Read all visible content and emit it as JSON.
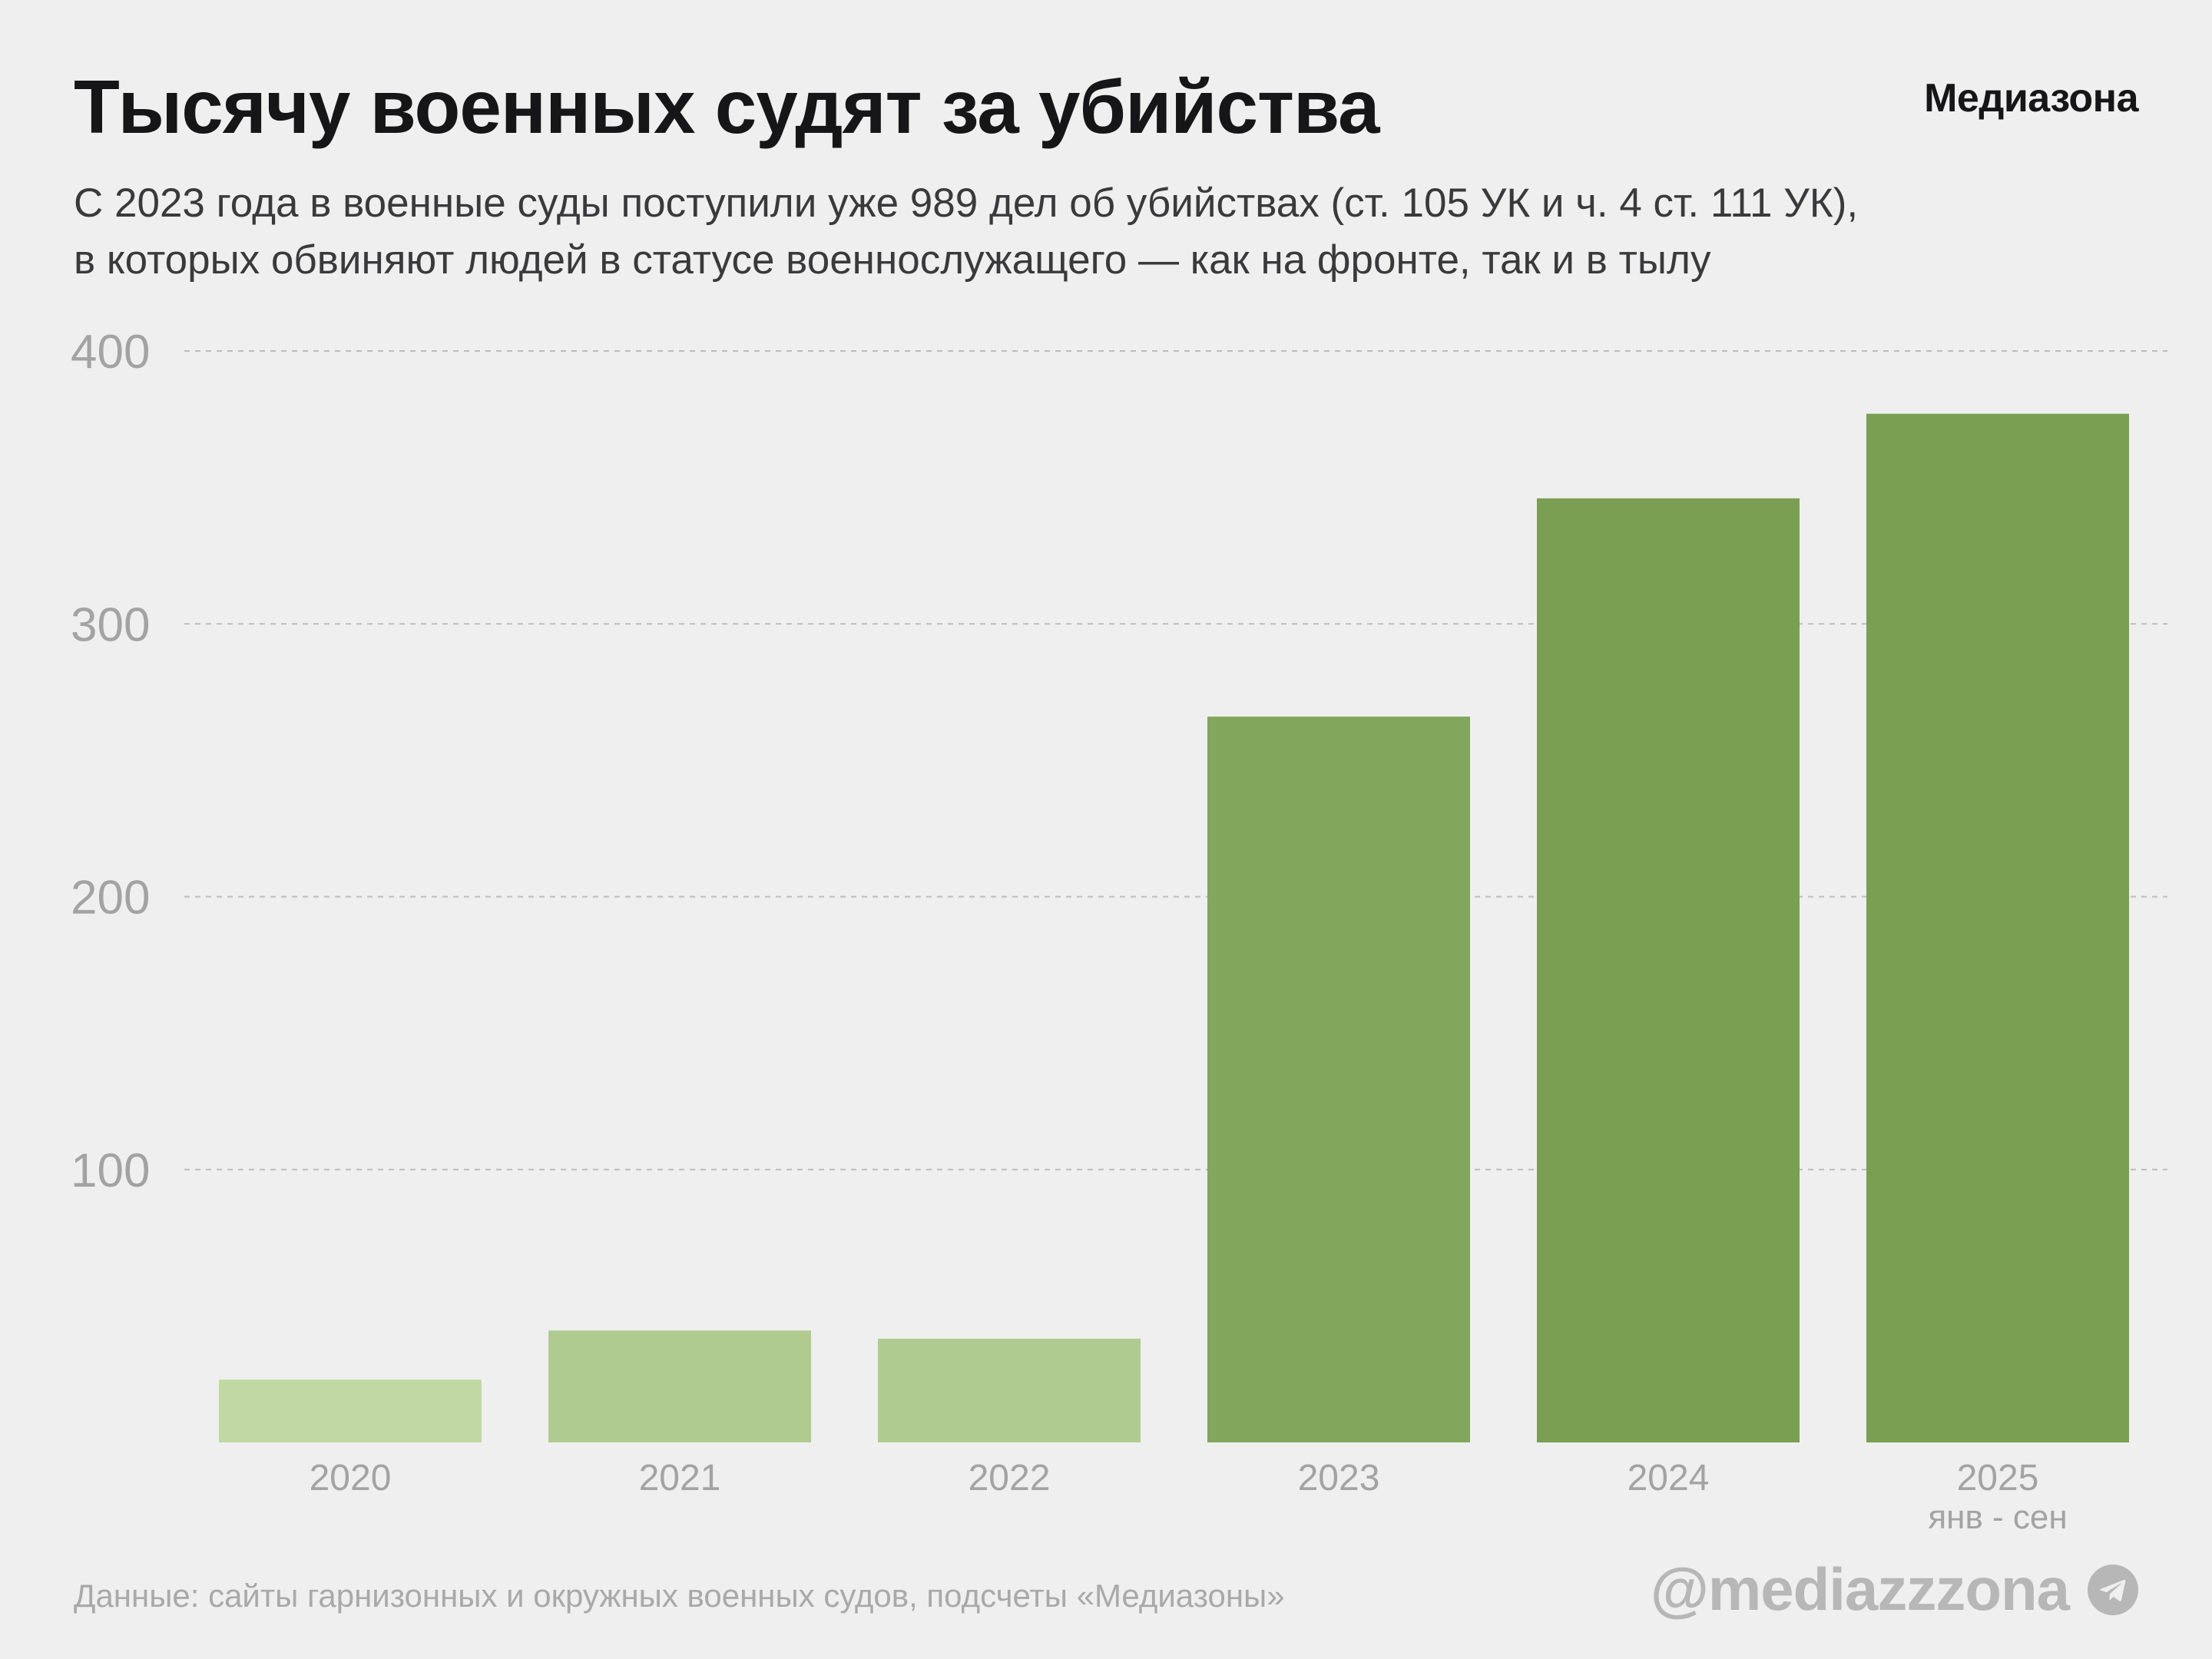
{
  "header": {
    "title": "Тысячу военных судят за убийства",
    "brand": "Медиазона",
    "subtitle_line1": "С 2023 года в военные суды поступили уже 989 дел об убийствах (ст. 105 УК и ч. 4 ст. 111 УК),",
    "subtitle_line2": "в которых обвиняют людей в статусе военнослужащего — как на фронте, так и в тылу"
  },
  "footer": {
    "source": "Данные: сайты гарнизонных и окружных военных судов, подсчеты «Медиазоны»",
    "handle": "@mediazzzona",
    "handle_icon": "telegram-icon"
  },
  "colors": {
    "pre_war": "#c0d9a3",
    "mid": "#b0cb8f",
    "recent": "#7a9e52",
    "grid": "#bdbdbd",
    "axis_text": "#a3a3a3"
  },
  "chart_data": {
    "type": "bar",
    "title": "Тысячу военных судят за убийства",
    "xlabel": "",
    "ylabel": "",
    "ylim": [
      0,
      400
    ],
    "yticks": [
      100,
      200,
      300,
      400
    ],
    "grid": true,
    "categories": [
      "2020",
      "2021",
      "2022",
      "2023",
      "2024",
      "2025"
    ],
    "category_sublabels": [
      "",
      "",
      "",
      "",
      "",
      "янв - сен"
    ],
    "values": [
      23,
      41,
      38,
      266,
      346,
      377
    ],
    "bar_colors": [
      "#c0d9a3",
      "#b0cb8f",
      "#b0cb8f",
      "#82a65b",
      "#7a9e52",
      "#7a9e52"
    ]
  }
}
